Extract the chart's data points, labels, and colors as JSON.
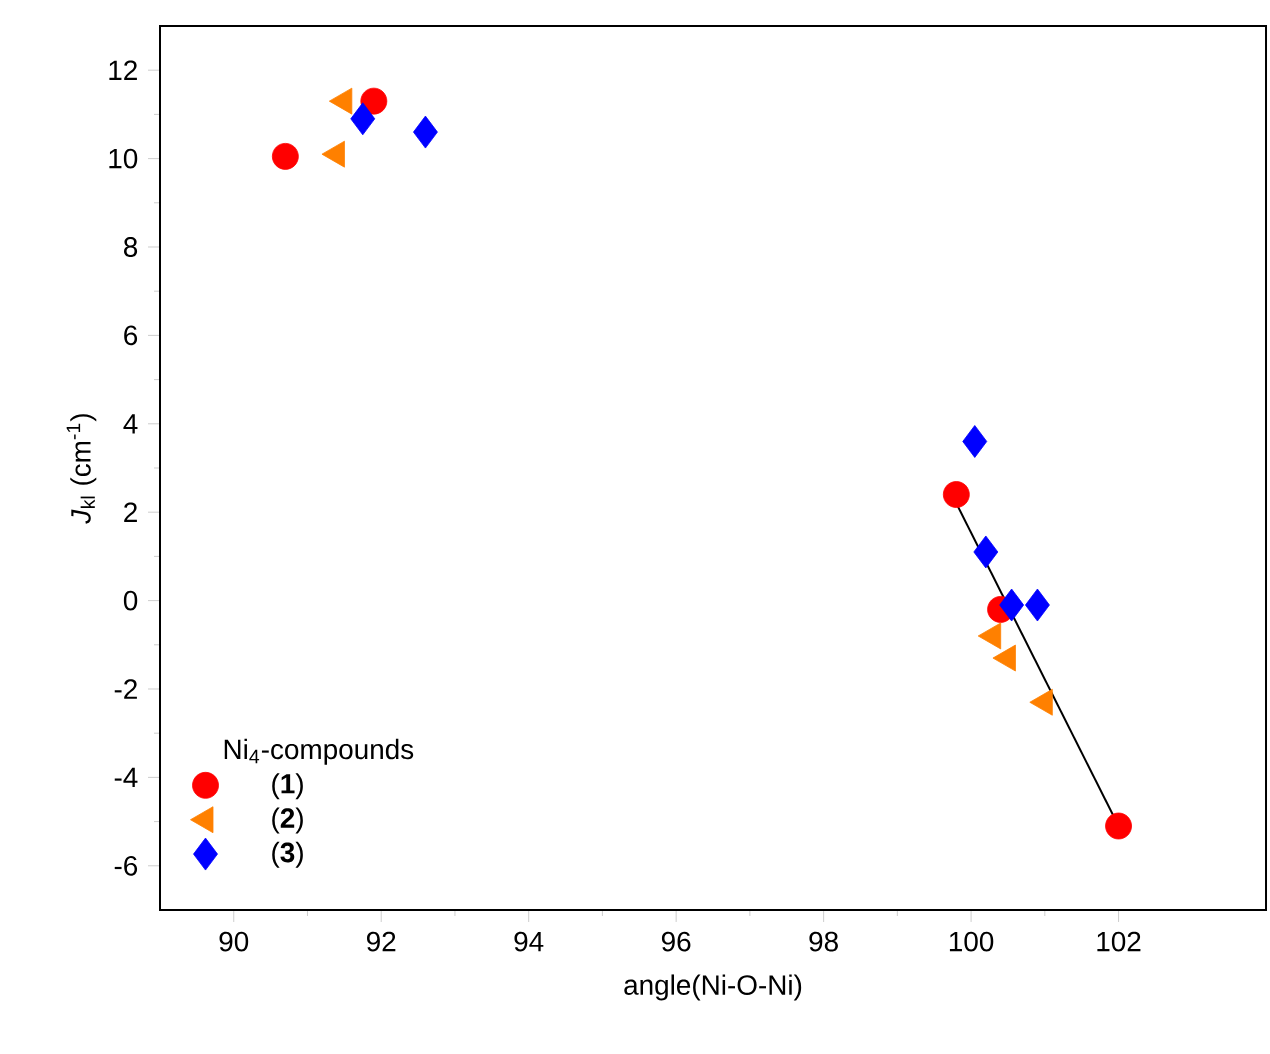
{
  "chart_data": {
    "type": "scatter",
    "xlabel": "angle(Ni-O-Ni)",
    "ylabel": "*J*$_{kl}$ (cm$^{-1}$)",
    "legend_title": "Ni$_{4}$-compounds",
    "legend": "bottom left",
    "grid": false,
    "xlim": [
      89,
      104
    ],
    "ylim": [
      -7,
      13
    ],
    "xticks": [
      90,
      92,
      94,
      96,
      98,
      100,
      102
    ],
    "yticks": [
      -6,
      -4,
      -2,
      0,
      2,
      4,
      6,
      8,
      10,
      12
    ],
    "series": [
      {
        "name": "(**1**)",
        "color": "#ff0000",
        "marker": "circle",
        "x": [
          90.7,
          91.9,
          99.8,
          100.4,
          102.0
        ],
        "values": [
          10.05,
          11.3,
          2.4,
          -0.2,
          -5.1
        ]
      },
      {
        "name": "(**2**)",
        "color": "#ff8000",
        "marker": "triangle",
        "x": [
          91.5,
          91.4,
          100.3,
          100.5,
          101.0
        ],
        "values": [
          11.3,
          10.1,
          -0.8,
          -1.3,
          -2.3
        ]
      },
      {
        "name": "(**3**)",
        "color": "#0000ff",
        "marker": "diamond",
        "x": [
          91.75,
          92.6,
          100.05,
          100.2,
          100.55,
          100.9
        ],
        "values": [
          10.9,
          10.6,
          3.6,
          1.1,
          -0.1,
          -0.1
        ]
      },
      {
        "type": "line",
        "color": "#000000",
        "marker": "none",
        "x": [
          99.8,
          102.0
        ],
        "values": [
          2.2,
          -5.1
        ]
      }
    ]
  }
}
